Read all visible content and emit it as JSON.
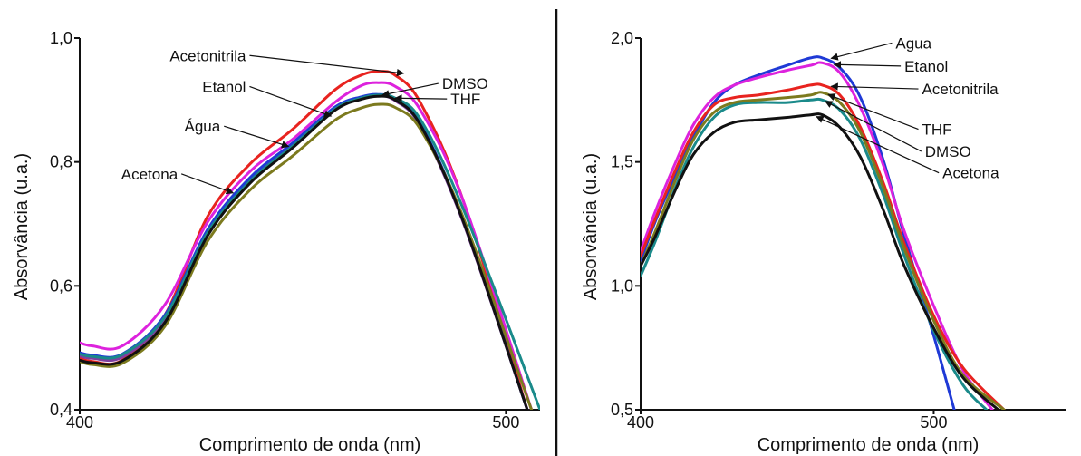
{
  "chart_data": [
    {
      "type": "line",
      "xlabel": "Comprimento de onda (nm)",
      "ylabel": "Absorvância (u.a.)",
      "xlim": [
        400,
        508
      ],
      "ylim": [
        0.4,
        1.0
      ],
      "xticks": [
        400,
        500
      ],
      "xtick_labels": [
        "400",
        "500"
      ],
      "yticks": [
        0.4,
        0.6,
        0.8,
        1.0
      ],
      "ytick_labels": [
        "0,4",
        "0,6",
        "0,8",
        "1,0"
      ],
      "grid": false,
      "legend": "direct-labels",
      "series": [
        {
          "name": "Acetonitrila",
          "color": "#e8231f",
          "x": [
            400,
            403,
            410,
            420,
            430,
            440,
            450,
            460,
            466,
            470,
            474,
            480,
            490,
            505
          ],
          "y": [
            0.483,
            0.478,
            0.48,
            0.553,
            0.712,
            0.797,
            0.853,
            0.917,
            0.94,
            0.946,
            0.94,
            0.895,
            0.737,
            0.4
          ],
          "label_x": 476,
          "label_y": 0.943,
          "text_x": 439,
          "text_y": 0.963
        },
        {
          "name": "DMSO",
          "color": "#7f3fa0",
          "x": [
            400,
            403,
            410,
            420,
            430,
            440,
            450,
            460,
            466,
            470,
            474,
            480,
            490,
            505
          ],
          "y": [
            0.487,
            0.483,
            0.485,
            0.547,
            0.686,
            0.771,
            0.828,
            0.887,
            0.903,
            0.907,
            0.899,
            0.857,
            0.702,
            0.4
          ],
          "label_x": 471,
          "label_y": 0.908,
          "text_x": 485,
          "text_y": 0.918
        },
        {
          "name": "Etanol",
          "color": "#dd22dd",
          "x": [
            400,
            403,
            410,
            420,
            430,
            440,
            450,
            460,
            466,
            470,
            474,
            480,
            490,
            506
          ],
          "y": [
            0.508,
            0.503,
            0.503,
            0.57,
            0.703,
            0.785,
            0.837,
            0.897,
            0.923,
            0.928,
            0.922,
            0.883,
            0.737,
            0.4
          ],
          "label_x": 459,
          "label_y": 0.874,
          "text_x": 439,
          "text_y": 0.913
        },
        {
          "name": "Água",
          "color": "#1f3ad6",
          "x": [
            400,
            403,
            410,
            420,
            430,
            440,
            450,
            460,
            466,
            470,
            474,
            480,
            490,
            505
          ],
          "y": [
            0.492,
            0.488,
            0.49,
            0.553,
            0.691,
            0.775,
            0.831,
            0.889,
            0.905,
            0.909,
            0.902,
            0.861,
            0.706,
            0.4
          ],
          "label_x": 449,
          "label_y": 0.825,
          "text_x": 433,
          "text_y": 0.849
        },
        {
          "name": "THF",
          "color": "#1a8a8a",
          "x": [
            400,
            403,
            410,
            420,
            430,
            440,
            450,
            460,
            466,
            470,
            474,
            480,
            490,
            508
          ],
          "y": [
            0.49,
            0.486,
            0.489,
            0.55,
            0.686,
            0.769,
            0.826,
            0.886,
            0.903,
            0.908,
            0.903,
            0.868,
            0.724,
            0.4
          ],
          "label_x": 474,
          "label_y": 0.903,
          "text_x": 487,
          "text_y": 0.893
        },
        {
          "name": "Acetona",
          "color": "#7c7a1e",
          "x": [
            400,
            403,
            410,
            420,
            430,
            440,
            450,
            460,
            466,
            470,
            474,
            480,
            490,
            506
          ],
          "y": [
            0.478,
            0.473,
            0.475,
            0.535,
            0.672,
            0.755,
            0.81,
            0.868,
            0.887,
            0.893,
            0.888,
            0.852,
            0.71,
            0.4
          ],
          "label_x": 436,
          "label_y": 0.75,
          "text_x": 423,
          "text_y": 0.772
        },
        {
          "name": "",
          "color": "#111111",
          "x": [
            400,
            403,
            410,
            420,
            430,
            440,
            450,
            460,
            466,
            470,
            474,
            480,
            490,
            505
          ],
          "y": [
            0.48,
            0.476,
            0.479,
            0.541,
            0.681,
            0.766,
            0.823,
            0.884,
            0.901,
            0.906,
            0.9,
            0.859,
            0.704,
            0.4
          ]
        }
      ]
    },
    {
      "type": "line",
      "xlabel": "Comprimento de onda (nm)",
      "ylabel": "Absorvância (u.a.)",
      "xlim": [
        400,
        545
      ],
      "ylim": [
        0.5,
        2.0
      ],
      "xticks": [
        400,
        500
      ],
      "xtick_labels": [
        "400",
        "500"
      ],
      "yticks": [
        0.5,
        1.0,
        1.5,
        2.0
      ],
      "ytick_labels": [
        "0,5",
        "1,0",
        "1,5",
        "2,0"
      ],
      "grid": false,
      "legend": "direct-labels",
      "series": [
        {
          "name": "Agua",
          "color": "#1f3ad6",
          "x": [
            400,
            405,
            412,
            418,
            425,
            432,
            440,
            450,
            458,
            462,
            468,
            475,
            483,
            490,
            500,
            507
          ],
          "y": [
            1.1,
            1.26,
            1.45,
            1.6,
            1.74,
            1.81,
            1.85,
            1.89,
            1.92,
            1.92,
            1.88,
            1.76,
            1.5,
            1.2,
            0.8,
            0.5
          ],
          "label_x": 465,
          "label_y": 1.918,
          "text_x": 487,
          "text_y": 1.958
        },
        {
          "name": "Etanol",
          "color": "#dd22dd",
          "x": [
            400,
            405,
            412,
            418,
            425,
            432,
            440,
            450,
            458,
            462,
            468,
            475,
            483,
            490,
            500,
            510,
            520
          ],
          "y": [
            1.14,
            1.3,
            1.5,
            1.65,
            1.76,
            1.81,
            1.84,
            1.87,
            1.89,
            1.9,
            1.86,
            1.72,
            1.48,
            1.22,
            0.92,
            0.66,
            0.5
          ],
          "label_x": 466,
          "label_y": 1.893,
          "text_x": 490,
          "text_y": 1.865
        },
        {
          "name": "Acetonitrila",
          "color": "#e8231f",
          "x": [
            400,
            405,
            412,
            418,
            425,
            432,
            440,
            450,
            458,
            462,
            468,
            475,
            483,
            490,
            500,
            510,
            524
          ],
          "y": [
            1.12,
            1.27,
            1.47,
            1.62,
            1.73,
            1.76,
            1.77,
            1.79,
            1.81,
            1.81,
            1.77,
            1.64,
            1.41,
            1.17,
            0.88,
            0.67,
            0.5
          ],
          "label_x": 465,
          "label_y": 1.805,
          "text_x": 496,
          "text_y": 1.773
        },
        {
          "name": "THF",
          "color": "#1a8a8a",
          "x": [
            400,
            405,
            412,
            418,
            425,
            432,
            440,
            450,
            458,
            462,
            468,
            475,
            483,
            490,
            500,
            510,
            518
          ],
          "y": [
            1.04,
            1.18,
            1.4,
            1.56,
            1.68,
            1.73,
            1.74,
            1.74,
            1.75,
            1.75,
            1.71,
            1.59,
            1.36,
            1.12,
            0.82,
            0.6,
            0.5
          ],
          "label_x": 464,
          "label_y": 1.772,
          "text_x": 496,
          "text_y": 1.61
        },
        {
          "name": "DMSO",
          "color": "#7c7a1e",
          "x": [
            400,
            405,
            412,
            418,
            425,
            432,
            440,
            450,
            458,
            462,
            468,
            475,
            483,
            490,
            500,
            510,
            524
          ],
          "y": [
            1.08,
            1.22,
            1.43,
            1.59,
            1.7,
            1.74,
            1.75,
            1.76,
            1.77,
            1.78,
            1.74,
            1.62,
            1.39,
            1.15,
            0.86,
            0.64,
            0.5
          ],
          "label_x": 463,
          "label_y": 1.745,
          "text_x": 497,
          "text_y": 1.521
        },
        {
          "name": "Acetona",
          "color": "#111111",
          "x": [
            400,
            405,
            412,
            418,
            425,
            432,
            440,
            450,
            458,
            462,
            468,
            475,
            483,
            490,
            500,
            510,
            522
          ],
          "y": [
            1.08,
            1.2,
            1.39,
            1.53,
            1.62,
            1.66,
            1.67,
            1.68,
            1.69,
            1.69,
            1.64,
            1.52,
            1.3,
            1.08,
            0.83,
            0.63,
            0.5
          ],
          "label_x": 460,
          "label_y": 1.683,
          "text_x": 503,
          "text_y": 1.434
        }
      ]
    }
  ]
}
